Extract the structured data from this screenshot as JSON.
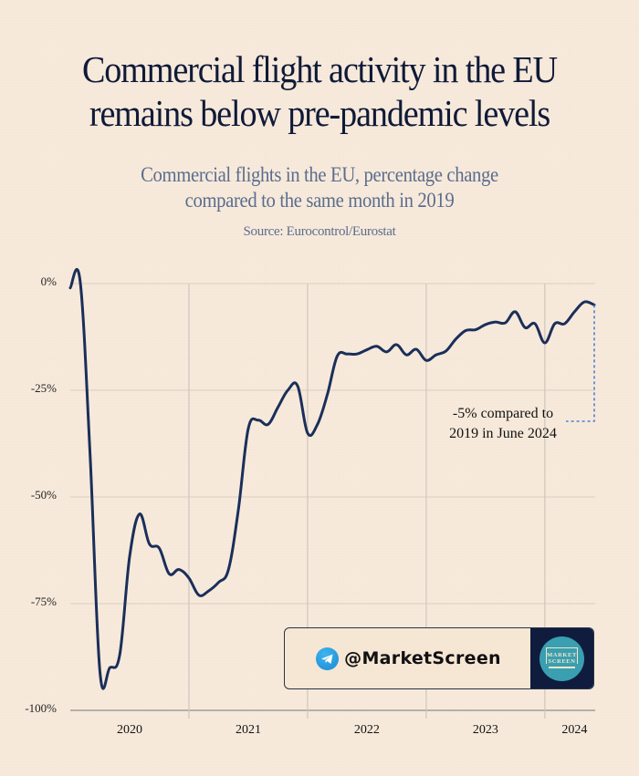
{
  "header": {
    "title_line1": "Commercial flight activity in the EU",
    "title_line2": "remains below pre-pandemic levels",
    "subtitle_line1": "Commercial flights in the EU, percentage change",
    "subtitle_line2": "compared to the same month in 2019",
    "source": "Source: Eurocontrol/Eurostat"
  },
  "badge": {
    "icon": "telegram-icon",
    "handle": "@MarketScreen",
    "logo_line1": "MARKET",
    "logo_line2": "SCREEN"
  },
  "colors": {
    "background": "#f8eadb",
    "line": "#1a2f5a",
    "title": "#0f1a38",
    "subtitle": "#5a6d8e",
    "annotation_dash": "#4a7fd6",
    "grid": "#d9d0c6"
  },
  "chart_data": {
    "type": "line",
    "title": "Commercial flight activity in the EU remains below pre-pandemic levels",
    "subtitle": "Commercial flights in the EU, percentage change compared to the same month in 2019",
    "xlabel": "",
    "ylabel": "",
    "ylim": [
      -100,
      0
    ],
    "yticks": [
      0,
      -25,
      -50,
      -75,
      -100
    ],
    "ytick_labels": [
      "0%",
      "-25%",
      "-50%",
      "-75%",
      "-100%"
    ],
    "xtick_labels": [
      "2020",
      "2021",
      "2022",
      "2023",
      "2024"
    ],
    "grid": true,
    "legend": "none",
    "annotation": {
      "text_line1": "-5% compared to",
      "text_line2": "2019 in June 2024",
      "target": "2024-06",
      "value": -5
    },
    "x": [
      "2020-01",
      "2020-02",
      "2020-03",
      "2020-04",
      "2020-05",
      "2020-06",
      "2020-07",
      "2020-08",
      "2020-09",
      "2020-10",
      "2020-11",
      "2020-12",
      "2021-01",
      "2021-02",
      "2021-03",
      "2021-04",
      "2021-05",
      "2021-06",
      "2021-07",
      "2021-08",
      "2021-09",
      "2021-10",
      "2021-11",
      "2021-12",
      "2022-01",
      "2022-02",
      "2022-03",
      "2022-04",
      "2022-05",
      "2022-06",
      "2022-07",
      "2022-08",
      "2022-09",
      "2022-10",
      "2022-11",
      "2022-12",
      "2023-01",
      "2023-02",
      "2023-03",
      "2023-04",
      "2023-05",
      "2023-06",
      "2023-07",
      "2023-08",
      "2023-09",
      "2023-10",
      "2023-11",
      "2023-12",
      "2024-01",
      "2024-02",
      "2024-03",
      "2024-04",
      "2024-05",
      "2024-06"
    ],
    "series": [
      {
        "name": "Commercial flights, % change vs same month 2019",
        "values": [
          -1,
          0.5,
          -40,
          -91,
          -90,
          -87,
          -64,
          -54,
          -61,
          -62,
          -68,
          -67,
          -69,
          -73,
          -72,
          -70,
          -67,
          -53,
          -34,
          -32,
          -33,
          -29,
          -25,
          -24,
          -35,
          -33,
          -26,
          -17,
          -16.5,
          -16.5,
          -15.5,
          -14.7,
          -16,
          -14.3,
          -16.7,
          -15.4,
          -18,
          -16.7,
          -15.8,
          -13,
          -11,
          -10.8,
          -9.6,
          -9,
          -9.2,
          -6.6,
          -10.3,
          -9.4,
          -13.9,
          -9.4,
          -9.4,
          -6.6,
          -4.3,
          -5
        ]
      }
    ]
  }
}
